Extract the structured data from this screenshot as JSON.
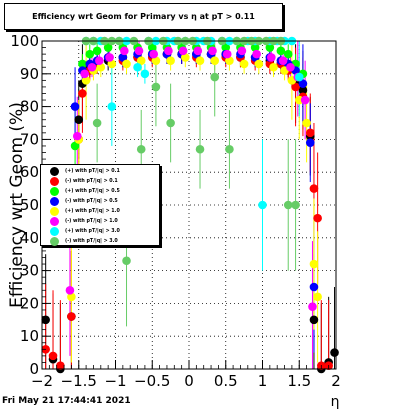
{
  "title": "Efficiency wrt Geom for Primary vs   η at pT > 0.11",
  "timestamp": "Fri May 21 17:44:41 2021",
  "chart_data": {
    "type": "scatter",
    "title": "Efficiency wrt Geom for Primary vs   η at pT > 0.11",
    "xlabel": "η",
    "ylabel": "Efficiency wrt Geom (%)",
    "xlim": [
      -2,
      2
    ],
    "ylim": [
      0,
      100
    ],
    "xticks": [
      -2,
      -1.5,
      -1,
      -0.5,
      0,
      0.5,
      1,
      1.5,
      2
    ],
    "xtick_labels": [
      "−2",
      "−1.5",
      "−1",
      "−0.5",
      "0",
      "0.5",
      "1",
      "1.5",
      "2"
    ],
    "yticks": [
      0,
      10,
      20,
      30,
      40,
      50,
      60,
      70,
      80,
      90,
      100
    ],
    "grid": true,
    "legend_position": "left",
    "series": [
      {
        "name": "(+) with pT/|q| > 0.1",
        "color": "#000000",
        "points": [
          [
            -1.95,
            15
          ],
          [
            -1.85,
            3
          ],
          [
            -1.75,
            0
          ],
          [
            -1.6,
            16
          ],
          [
            -1.5,
            76
          ],
          [
            -1.45,
            87
          ],
          [
            -1.35,
            92
          ],
          [
            -1.25,
            93
          ],
          [
            -1.1,
            94
          ],
          [
            -0.9,
            95
          ],
          [
            -0.7,
            95
          ],
          [
            -0.5,
            96
          ],
          [
            -0.3,
            96
          ],
          [
            -0.1,
            96
          ],
          [
            0.1,
            96
          ],
          [
            0.3,
            96
          ],
          [
            0.5,
            96
          ],
          [
            0.7,
            95
          ],
          [
            0.9,
            95
          ],
          [
            1.1,
            94
          ],
          [
            1.25,
            93
          ],
          [
            1.35,
            92
          ],
          [
            1.45,
            87
          ],
          [
            1.55,
            85
          ],
          [
            1.65,
            71
          ],
          [
            1.7,
            15
          ],
          [
            1.8,
            0
          ],
          [
            1.9,
            2
          ],
          [
            1.98,
            5
          ]
        ]
      },
      {
        "name": "(-) with pT/|q| > 0.1",
        "color": "#ff0000",
        "points": [
          [
            -1.95,
            6
          ],
          [
            -1.85,
            4
          ],
          [
            -1.75,
            1
          ],
          [
            -1.6,
            16
          ],
          [
            -1.5,
            70
          ],
          [
            -1.45,
            84
          ],
          [
            -1.35,
            91
          ],
          [
            -1.25,
            93
          ],
          [
            -1.1,
            95
          ],
          [
            -0.9,
            94
          ],
          [
            -0.7,
            95
          ],
          [
            -0.5,
            95
          ],
          [
            -0.3,
            96
          ],
          [
            -0.1,
            96
          ],
          [
            0.1,
            95
          ],
          [
            0.3,
            96
          ],
          [
            0.5,
            95
          ],
          [
            0.7,
            95
          ],
          [
            0.9,
            94
          ],
          [
            1.1,
            93
          ],
          [
            1.25,
            93
          ],
          [
            1.35,
            91
          ],
          [
            1.45,
            86
          ],
          [
            1.55,
            83
          ],
          [
            1.65,
            72
          ],
          [
            1.7,
            55
          ],
          [
            1.75,
            46
          ],
          [
            1.8,
            1
          ],
          [
            1.9,
            1
          ]
        ]
      },
      {
        "name": "(+) with pT/|q| > 0.5",
        "color": "#00ff00",
        "points": [
          [
            -1.55,
            68
          ],
          [
            -1.45,
            93
          ],
          [
            -1.35,
            96
          ],
          [
            -1.25,
            97
          ],
          [
            -1.1,
            98
          ],
          [
            -0.9,
            98
          ],
          [
            -0.7,
            98
          ],
          [
            -0.5,
            98
          ],
          [
            -0.3,
            98
          ],
          [
            -0.1,
            98
          ],
          [
            0.1,
            98
          ],
          [
            0.3,
            98
          ],
          [
            0.5,
            98
          ],
          [
            0.7,
            98
          ],
          [
            0.9,
            98
          ],
          [
            1.1,
            98
          ],
          [
            1.25,
            97
          ],
          [
            1.35,
            96
          ],
          [
            1.45,
            93
          ],
          [
            1.55,
            90
          ]
        ]
      },
      {
        "name": "(-) with pT/|q| > 0.5",
        "color": "#0000ff",
        "points": [
          [
            -1.55,
            80
          ],
          [
            -1.45,
            91
          ],
          [
            -1.35,
            93
          ],
          [
            -1.25,
            94
          ],
          [
            -1.1,
            95
          ],
          [
            -0.9,
            95
          ],
          [
            -0.7,
            96
          ],
          [
            -0.5,
            96
          ],
          [
            -0.3,
            96
          ],
          [
            -0.1,
            96
          ],
          [
            0.1,
            96
          ],
          [
            0.3,
            96
          ],
          [
            0.5,
            96
          ],
          [
            0.7,
            96
          ],
          [
            0.9,
            95
          ],
          [
            1.1,
            95
          ],
          [
            1.25,
            94
          ],
          [
            1.35,
            93
          ],
          [
            1.45,
            91
          ],
          [
            1.55,
            87
          ],
          [
            1.65,
            69
          ],
          [
            1.7,
            25
          ]
        ]
      },
      {
        "name": "(+) with pT/|q| > 1.0",
        "color": "#ffff00",
        "points": [
          [
            -1.6,
            22
          ],
          [
            -1.5,
            70
          ],
          [
            -1.4,
            88
          ],
          [
            -1.3,
            91
          ],
          [
            -1.2,
            92
          ],
          [
            -1.05,
            93
          ],
          [
            -0.85,
            93
          ],
          [
            -0.65,
            94
          ],
          [
            -0.45,
            94
          ],
          [
            -0.25,
            94
          ],
          [
            -0.05,
            95
          ],
          [
            0.15,
            94
          ],
          [
            0.35,
            94
          ],
          [
            0.55,
            94
          ],
          [
            0.75,
            93
          ],
          [
            0.95,
            93
          ],
          [
            1.15,
            92
          ],
          [
            1.3,
            91
          ],
          [
            1.4,
            88
          ],
          [
            1.5,
            82
          ],
          [
            1.6,
            75
          ],
          [
            1.7,
            32
          ],
          [
            1.75,
            22
          ]
        ]
      },
      {
        "name": "(-) with pT/|q| > 1.0",
        "color": "#ff00ff",
        "points": [
          [
            -1.62,
            24
          ],
          [
            -1.52,
            71
          ],
          [
            -1.42,
            90
          ],
          [
            -1.32,
            92
          ],
          [
            -1.22,
            94
          ],
          [
            -1.08,
            95
          ],
          [
            -0.88,
            97
          ],
          [
            -0.68,
            97
          ],
          [
            -0.48,
            96
          ],
          [
            -0.28,
            97
          ],
          [
            -0.08,
            97
          ],
          [
            0.12,
            97
          ],
          [
            0.32,
            97
          ],
          [
            0.52,
            96
          ],
          [
            0.72,
            97
          ],
          [
            0.92,
            96
          ],
          [
            1.12,
            95
          ],
          [
            1.28,
            94
          ],
          [
            1.38,
            92
          ],
          [
            1.48,
            89
          ],
          [
            1.58,
            82
          ],
          [
            1.68,
            19
          ]
        ]
      },
      {
        "name": "(+) with pT/|q| > 3.0",
        "color": "#00ffff",
        "points": [
          [
            -1.4,
            100
          ],
          [
            -1.3,
            100
          ],
          [
            -1.2,
            100
          ],
          [
            -1.05,
            80
          ],
          [
            -0.95,
            100
          ],
          [
            -0.85,
            100
          ],
          [
            -0.7,
            92
          ],
          [
            -0.6,
            90
          ],
          [
            -0.55,
            100
          ],
          [
            -0.45,
            100
          ],
          [
            -0.3,
            100
          ],
          [
            -0.2,
            100
          ],
          [
            -0.05,
            100
          ],
          [
            0.1,
            100
          ],
          [
            0.2,
            100
          ],
          [
            0.3,
            100
          ],
          [
            0.45,
            100
          ],
          [
            0.55,
            100
          ],
          [
            0.65,
            100
          ],
          [
            0.8,
            100
          ],
          [
            0.9,
            100
          ],
          [
            1,
            50
          ],
          [
            1.1,
            100
          ],
          [
            1.2,
            100
          ],
          [
            1.3,
            100
          ],
          [
            1.4,
            100
          ],
          [
            1.5,
            89
          ]
        ]
      },
      {
        "name": "(-) with pT/|q| > 3.0",
        "color": "#66cc66",
        "points": [
          [
            -1.4,
            100
          ],
          [
            -1.3,
            100
          ],
          [
            -1.25,
            75
          ],
          [
            -1.15,
            100
          ],
          [
            -1.05,
            100
          ],
          [
            -0.95,
            100
          ],
          [
            -0.85,
            33
          ],
          [
            -0.75,
            100
          ],
          [
            -0.65,
            67
          ],
          [
            -0.55,
            100
          ],
          [
            -0.45,
            86
          ],
          [
            -0.35,
            100
          ],
          [
            -0.25,
            75
          ],
          [
            -0.15,
            100
          ],
          [
            -0.05,
            100
          ],
          [
            0.05,
            100
          ],
          [
            0.15,
            67
          ],
          [
            0.25,
            100
          ],
          [
            0.35,
            89
          ],
          [
            0.45,
            100
          ],
          [
            0.55,
            67
          ],
          [
            0.65,
            100
          ],
          [
            0.75,
            100
          ],
          [
            0.85,
            100
          ],
          [
            0.95,
            100
          ],
          [
            1.05,
            100
          ],
          [
            1.15,
            100
          ],
          [
            1.25,
            100
          ],
          [
            1.35,
            50
          ],
          [
            1.45,
            50
          ]
        ]
      }
    ]
  }
}
